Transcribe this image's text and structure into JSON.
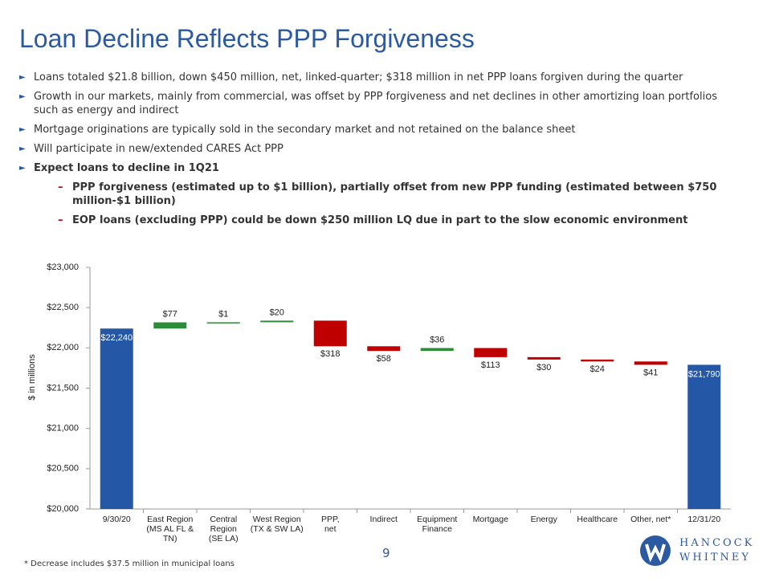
{
  "title": "Loan Decline Reflects PPP Forgiveness",
  "bullets": [
    "Loans totaled $21.8 billion, down $450 million, net, linked-quarter; $318 million in net PPP loans forgiven during the quarter",
    "Growth in our markets, mainly from commercial, was offset by PPP forgiveness and net declines in other amortizing loan portfolios such as energy and indirect",
    "Mortgage originations are typically sold in the secondary market and not retained on the balance sheet",
    "Will participate in new/extended CARES Act PPP",
    "Expect loans to decline in 1Q21"
  ],
  "sub_bullets": [
    "PPP forgiveness (estimated up to $1 billion), partially offset from new PPP funding (estimated between $750 million-$1 billion)",
    "EOP loans (excluding PPP) could be down $250 million LQ due in part to the slow economic environment"
  ],
  "chart_data": {
    "type": "waterfall",
    "y_label": "$ in millions",
    "categories": [
      "9/30/20",
      "East Region\n(MS AL FL & TN)",
      "Central Region\n(SE LA)",
      "West Region\n(TX & SW LA)",
      "PPP,\nnet",
      "Indirect",
      "Equipment\nFinance",
      "Mortgage",
      "Energy",
      "Healthcare",
      "Other, net*",
      "12/31/20"
    ],
    "values": [
      22240,
      77,
      1,
      20,
      -318,
      -58,
      36,
      -113,
      -30,
      -24,
      -41,
      21790
    ],
    "value_labels": [
      "$22,240",
      "$77",
      "$1",
      "$20",
      "$318",
      "$58",
      "$36",
      "$113",
      "$30",
      "$24",
      "$41",
      "$21,790"
    ],
    "colors": {
      "total": "#2557a7",
      "increase": "#2e8b3a",
      "decrease": "#c00000"
    },
    "ylim": [
      20000,
      23000
    ],
    "yticks": [
      {
        "value": 20000,
        "label": "$20,000"
      },
      {
        "value": 20500,
        "label": "$20,500"
      },
      {
        "value": 21000,
        "label": "$21,000"
      },
      {
        "value": 21500,
        "label": "$21,500"
      },
      {
        "value": 22000,
        "label": "$22,000"
      },
      {
        "value": 22500,
        "label": "$22,500"
      },
      {
        "value": 23000,
        "label": "$23,000"
      }
    ]
  },
  "footnote": "* Decrease includes $37.5 million in municipal loans",
  "page_number": "9",
  "logo": {
    "line1": "HANCOCK",
    "line2": "WHITNEY"
  }
}
